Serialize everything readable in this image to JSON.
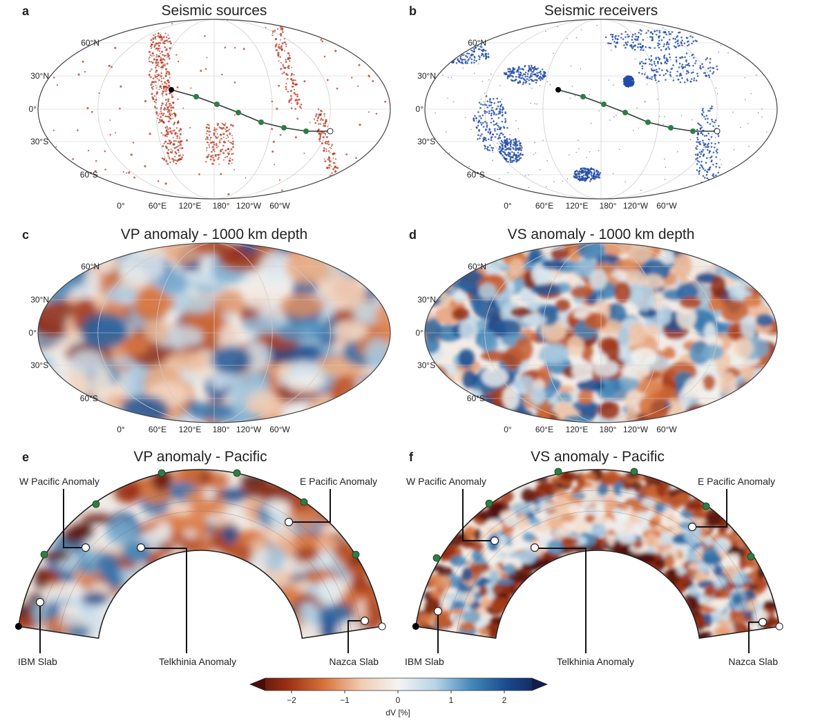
{
  "panels": [
    {
      "letter": "a",
      "title": "Seismic sources",
      "kind": "sources"
    },
    {
      "letter": "b",
      "title": "Seismic receivers",
      "kind": "receivers"
    },
    {
      "letter": "c",
      "title": "VP anomaly - 1000 km depth",
      "kind": "vp"
    },
    {
      "letter": "d",
      "title": "VS anomaly - 1000 km depth",
      "kind": "vs"
    }
  ],
  "lat_labels": [
    "60°N",
    "30°N",
    "0°",
    "30°S",
    "60°S"
  ],
  "lon_labels": [
    "0°",
    "60°E",
    "120°E",
    "180°",
    "120°W",
    "60°W"
  ],
  "sections": [
    {
      "letter": "e",
      "title": "VP anomaly - Pacific",
      "labels": {
        "w_pacific": "W Pacific Anomaly",
        "e_pacific": "E Pacific Anomaly",
        "ibm": "IBM Slab",
        "telkhinia": "Telkhinia Anomaly",
        "nazca": "Nazca Slab"
      }
    },
    {
      "letter": "f",
      "title": "VS anomaly - Pacific",
      "labels": {
        "w_pacific": "W Pacific Anomaly",
        "e_pacific": "E Pacific Anomaly",
        "ibm": "IBM Slab",
        "telkhinia": "Telkhinia Anomaly",
        "nazca": "Nazca Slab"
      }
    }
  ],
  "colorbar": {
    "label": "dV [%]",
    "ticks": [
      "−2",
      "−1",
      "0",
      "1",
      "2"
    ],
    "range": [
      -2.6,
      2.6
    ],
    "tick_values": [
      -2,
      -1,
      0,
      1,
      2
    ],
    "colormap": [
      "#4a0d0a",
      "#9b2f12",
      "#d9733a",
      "#f2cdb3",
      "#f4f4f2",
      "#b7d3e6",
      "#3f85b8",
      "#17468a",
      "#141c4a"
    ]
  },
  "colors": {
    "source": "#b0301a",
    "receiver": "#1f4aa8",
    "path": "#2a6d3c",
    "path_point": "#2e7d45",
    "start": "#000000",
    "end": "#ffffff"
  }
}
